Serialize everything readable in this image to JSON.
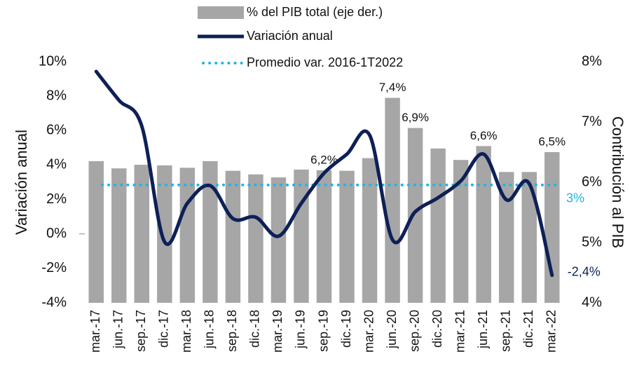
{
  "chart_data": {
    "type": "combo",
    "categories": [
      "mar.-17",
      "jun.-17",
      "sep.-17",
      "dic.-17",
      "mar.-18",
      "jun.-18",
      "sep.-18",
      "dic.-18",
      "mar.-19",
      "jun.-19",
      "sep.-19",
      "dic.-19",
      "mar.-20",
      "jun.-20",
      "sep.-20",
      "dic.-20",
      "mar.-21",
      "jun.-21",
      "sep.-21",
      "dic.-21",
      "mar.-22"
    ],
    "series": [
      {
        "name": "% del PIB total (eje der.)",
        "type": "bar",
        "axis": "y2",
        "color": "#a6a6a6",
        "values": [
          6.35,
          6.23,
          6.29,
          6.28,
          6.24,
          6.35,
          6.19,
          6.13,
          6.08,
          6.21,
          6.2,
          6.19,
          6.4,
          7.4,
          6.9,
          6.56,
          6.37,
          6.6,
          6.17,
          6.17,
          6.5
        ],
        "value_labels": [
          null,
          null,
          null,
          null,
          null,
          null,
          null,
          null,
          null,
          null,
          "6,2%",
          null,
          null,
          "7,4%",
          "6,9%",
          null,
          null,
          "6,6%",
          null,
          null,
          "6,5%"
        ]
      },
      {
        "name": "Variación anual",
        "type": "line",
        "axis": "y",
        "color": "#0d2057",
        "values": [
          9.43,
          7.76,
          6.26,
          -0.46,
          1.78,
          2.8,
          0.89,
          0.97,
          -0.13,
          1.78,
          3.53,
          4.63,
          5.73,
          -0.34,
          1.29,
          2.1,
          3.08,
          4.63,
          1.98,
          2.92,
          -2.4
        ],
        "value_labels": [
          null,
          null,
          null,
          null,
          null,
          null,
          null,
          null,
          null,
          null,
          null,
          null,
          null,
          null,
          null,
          null,
          null,
          null,
          null,
          null,
          "-2,4%"
        ]
      }
    ],
    "average": {
      "name": "Promedio var. 2016-1T2022",
      "color": "#1fb5e8",
      "value": 2.84,
      "label": "3%"
    },
    "ylabel": "Variación anual",
    "y2label": "Contribución al PIB",
    "ylim": [
      -4,
      10
    ],
    "yticks": [
      {
        "value": -4,
        "label": "-4%"
      },
      {
        "value": -2,
        "label": "-2%"
      },
      {
        "value": 0,
        "label": "0%"
      },
      {
        "value": 2,
        "label": "2%"
      },
      {
        "value": 4,
        "label": "4%"
      },
      {
        "value": 6,
        "label": "6%"
      },
      {
        "value": 8,
        "label": "8%"
      },
      {
        "value": 10,
        "label": "10%"
      }
    ],
    "y2lim": [
      4,
      8
    ],
    "y2ticks": [
      {
        "value": 4,
        "label": "4%"
      },
      {
        "value": 5,
        "label": "5%"
      },
      {
        "value": 6,
        "label": "6%"
      },
      {
        "value": 7,
        "label": "7%"
      },
      {
        "value": 8,
        "label": "8%"
      }
    ],
    "legend": "top"
  }
}
